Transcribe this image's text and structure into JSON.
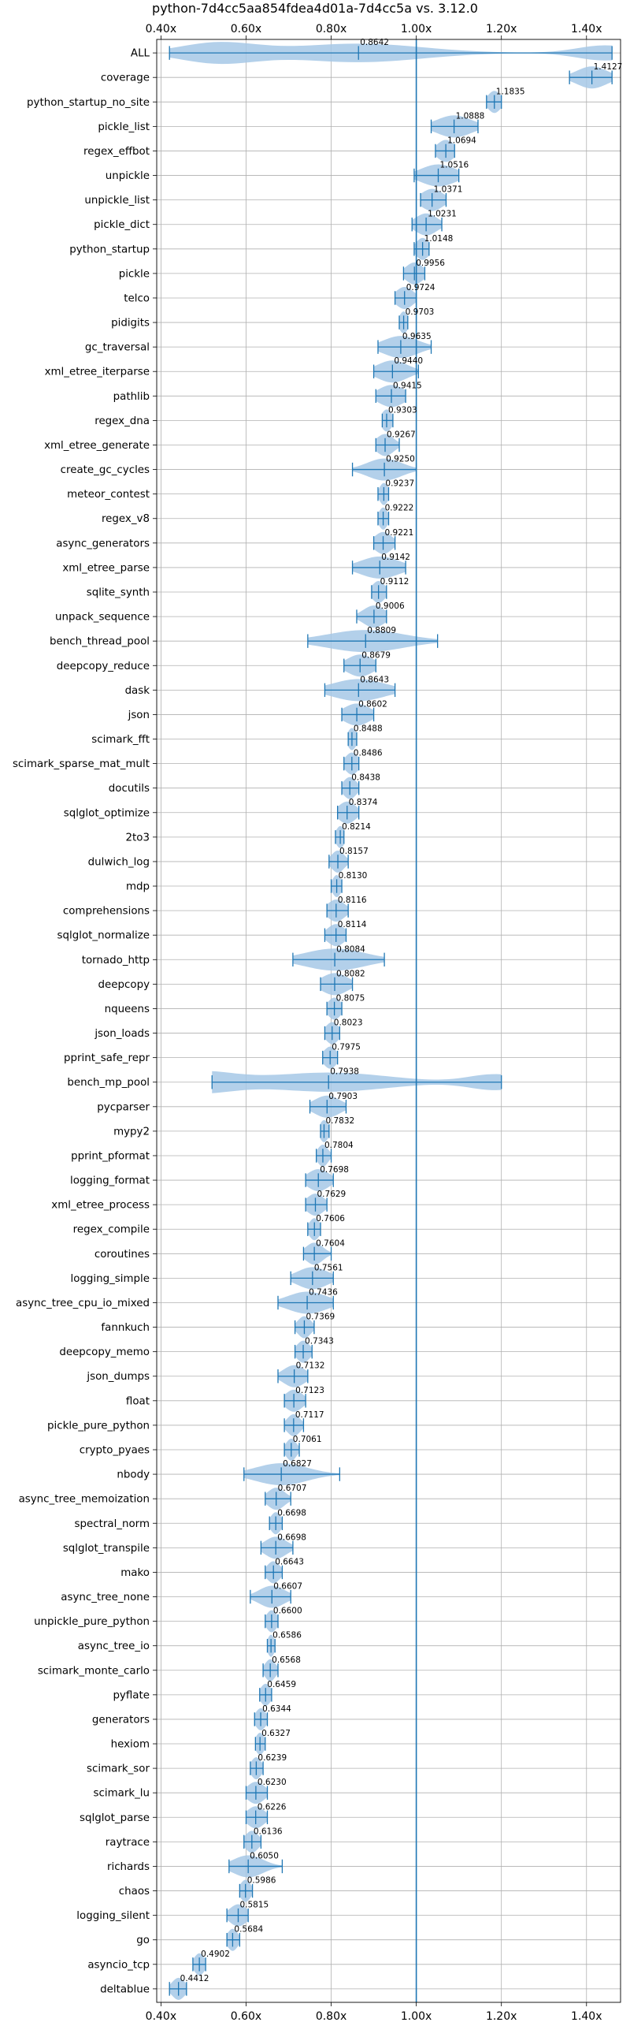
{
  "chart_data": {
    "type": "violin",
    "title": "python-7d4cc5aa854fdea4d01a-7d4cc5a vs. 3.12.0",
    "xlabel": "",
    "ylabel": "",
    "xlim": [
      0.39,
      1.48
    ],
    "x_ticks": [
      0.4,
      0.6,
      0.8,
      1.0,
      1.2,
      1.4
    ],
    "x_tick_labels": [
      "0.40x",
      "0.60x",
      "0.80x",
      "1.00x",
      "1.20x",
      "1.40x"
    ],
    "reference_line": 1.0,
    "grid": true,
    "color": "#1f77b4",
    "fill_color": "#a6c8e6",
    "benchmarks": [
      {
        "name": "ALL",
        "label": "0.8642",
        "median": 0.8642,
        "min": 0.42,
        "max": 1.46,
        "spread": 0.15,
        "multimodal": true
      },
      {
        "name": "coverage",
        "label": "1.4127",
        "median": 1.4127,
        "min": 1.36,
        "max": 1.46,
        "spread": 0.035
      },
      {
        "name": "python_startup_no_site",
        "label": "1.1835",
        "median": 1.1835,
        "min": 1.165,
        "max": 1.2,
        "spread": 0.015
      },
      {
        "name": "pickle_list",
        "label": "1.0888",
        "median": 1.0888,
        "min": 1.035,
        "max": 1.145,
        "spread": 0.04
      },
      {
        "name": "regex_effbot",
        "label": "1.0694",
        "median": 1.0694,
        "min": 1.045,
        "max": 1.09,
        "spread": 0.02
      },
      {
        "name": "unpickle",
        "label": "1.0516",
        "median": 1.0516,
        "min": 0.995,
        "max": 1.1,
        "spread": 0.04
      },
      {
        "name": "unpickle_list",
        "label": "1.0371",
        "median": 1.0371,
        "min": 1.01,
        "max": 1.07,
        "spread": 0.025
      },
      {
        "name": "pickle_dict",
        "label": "1.0231",
        "median": 1.0231,
        "min": 0.99,
        "max": 1.06,
        "spread": 0.025
      },
      {
        "name": "python_startup",
        "label": "1.0148",
        "median": 1.0148,
        "min": 0.995,
        "max": 1.03,
        "spread": 0.015
      },
      {
        "name": "pickle",
        "label": "0.9956",
        "median": 0.9956,
        "min": 0.97,
        "max": 1.02,
        "spread": 0.02
      },
      {
        "name": "telco",
        "label": "0.9724",
        "median": 0.9724,
        "min": 0.95,
        "max": 1.0,
        "spread": 0.02
      },
      {
        "name": "pidigits",
        "label": "0.9703",
        "median": 0.9703,
        "min": 0.96,
        "max": 0.98,
        "spread": 0.01
      },
      {
        "name": "gc_traversal",
        "label": "0.9635",
        "median": 0.9635,
        "min": 0.91,
        "max": 1.035,
        "spread": 0.04
      },
      {
        "name": "xml_etree_iterparse",
        "label": "0.9440",
        "median": 0.944,
        "min": 0.9,
        "max": 1.005,
        "spread": 0.035
      },
      {
        "name": "pathlib",
        "label": "0.9415",
        "median": 0.9415,
        "min": 0.905,
        "max": 0.975,
        "spread": 0.03
      },
      {
        "name": "regex_dna",
        "label": "0.9303",
        "median": 0.9303,
        "min": 0.92,
        "max": 0.945,
        "spread": 0.012
      },
      {
        "name": "xml_etree_generate",
        "label": "0.9267",
        "median": 0.9267,
        "min": 0.905,
        "max": 0.96,
        "spread": 0.02
      },
      {
        "name": "create_gc_cycles",
        "label": "0.9250",
        "median": 0.925,
        "min": 0.85,
        "max": 1.0,
        "spread": 0.04
      },
      {
        "name": "meteor_contest",
        "label": "0.9237",
        "median": 0.9237,
        "min": 0.91,
        "max": 0.935,
        "spread": 0.01
      },
      {
        "name": "regex_v8",
        "label": "0.9222",
        "median": 0.9222,
        "min": 0.91,
        "max": 0.935,
        "spread": 0.01
      },
      {
        "name": "async_generators",
        "label": "0.9221",
        "median": 0.9221,
        "min": 0.9,
        "max": 0.95,
        "spread": 0.02
      },
      {
        "name": "xml_etree_parse",
        "label": "0.9142",
        "median": 0.9142,
        "min": 0.85,
        "max": 0.975,
        "spread": 0.045
      },
      {
        "name": "sqlite_synth",
        "label": "0.9112",
        "median": 0.9112,
        "min": 0.895,
        "max": 0.93,
        "spread": 0.015
      },
      {
        "name": "unpack_sequence",
        "label": "0.9006",
        "median": 0.9006,
        "min": 0.86,
        "max": 0.93,
        "spread": 0.025
      },
      {
        "name": "bench_thread_pool",
        "label": "0.8809",
        "median": 0.8809,
        "min": 0.745,
        "max": 1.05,
        "spread": 0.09
      },
      {
        "name": "deepcopy_reduce",
        "label": "0.8679",
        "median": 0.8679,
        "min": 0.83,
        "max": 0.905,
        "spread": 0.03
      },
      {
        "name": "dask",
        "label": "0.8643",
        "median": 0.8643,
        "min": 0.785,
        "max": 0.95,
        "spread": 0.06
      },
      {
        "name": "json",
        "label": "0.8602",
        "median": 0.8602,
        "min": 0.825,
        "max": 0.9,
        "spread": 0.03
      },
      {
        "name": "scimark_fft",
        "label": "0.8488",
        "median": 0.8488,
        "min": 0.84,
        "max": 0.86,
        "spread": 0.01
      },
      {
        "name": "scimark_sparse_mat_mult",
        "label": "0.8486",
        "median": 0.8486,
        "min": 0.83,
        "max": 0.865,
        "spread": 0.015
      },
      {
        "name": "docutils",
        "label": "0.8438",
        "median": 0.8438,
        "min": 0.825,
        "max": 0.865,
        "spread": 0.015
      },
      {
        "name": "sqlglot_optimize",
        "label": "0.8374",
        "median": 0.8374,
        "min": 0.815,
        "max": 0.865,
        "spread": 0.02
      },
      {
        "name": "2to3",
        "label": "0.8214",
        "median": 0.8214,
        "min": 0.81,
        "max": 0.83,
        "spread": 0.01
      },
      {
        "name": "dulwich_log",
        "label": "0.8157",
        "median": 0.8157,
        "min": 0.795,
        "max": 0.84,
        "spread": 0.015
      },
      {
        "name": "mdp",
        "label": "0.8130",
        "median": 0.813,
        "min": 0.8,
        "max": 0.825,
        "spread": 0.01
      },
      {
        "name": "comprehensions",
        "label": "0.8116",
        "median": 0.8116,
        "min": 0.79,
        "max": 0.84,
        "spread": 0.02
      },
      {
        "name": "sqlglot_normalize",
        "label": "0.8114",
        "median": 0.8114,
        "min": 0.785,
        "max": 0.835,
        "spread": 0.02
      },
      {
        "name": "tornado_http",
        "label": "0.8084",
        "median": 0.8084,
        "min": 0.71,
        "max": 0.925,
        "spread": 0.07
      },
      {
        "name": "deepcopy",
        "label": "0.8082",
        "median": 0.8082,
        "min": 0.775,
        "max": 0.85,
        "spread": 0.03
      },
      {
        "name": "nqueens",
        "label": "0.8075",
        "median": 0.8075,
        "min": 0.79,
        "max": 0.825,
        "spread": 0.015
      },
      {
        "name": "json_loads",
        "label": "0.8023",
        "median": 0.8023,
        "min": 0.785,
        "max": 0.82,
        "spread": 0.015
      },
      {
        "name": "pprint_safe_repr",
        "label": "0.7975",
        "median": 0.7975,
        "min": 0.78,
        "max": 0.815,
        "spread": 0.015
      },
      {
        "name": "bench_mp_pool",
        "label": "0.7938",
        "median": 0.7938,
        "min": 0.52,
        "max": 1.2,
        "spread": 0.14,
        "multimodal": true
      },
      {
        "name": "pycparser",
        "label": "0.7903",
        "median": 0.7903,
        "min": 0.75,
        "max": 0.835,
        "spread": 0.03
      },
      {
        "name": "mypy2",
        "label": "0.7832",
        "median": 0.7832,
        "min": 0.775,
        "max": 0.795,
        "spread": 0.01
      },
      {
        "name": "pprint_pformat",
        "label": "0.7804",
        "median": 0.7804,
        "min": 0.765,
        "max": 0.8,
        "spread": 0.012
      },
      {
        "name": "logging_format",
        "label": "0.7698",
        "median": 0.7698,
        "min": 0.74,
        "max": 0.805,
        "spread": 0.025
      },
      {
        "name": "xml_etree_process",
        "label": "0.7629",
        "median": 0.7629,
        "min": 0.74,
        "max": 0.79,
        "spread": 0.02
      },
      {
        "name": "regex_compile",
        "label": "0.7606",
        "median": 0.7606,
        "min": 0.745,
        "max": 0.775,
        "spread": 0.012
      },
      {
        "name": "coroutines",
        "label": "0.7604",
        "median": 0.7604,
        "min": 0.735,
        "max": 0.8,
        "spread": 0.02
      },
      {
        "name": "logging_simple",
        "label": "0.7561",
        "median": 0.7561,
        "min": 0.705,
        "max": 0.805,
        "spread": 0.035
      },
      {
        "name": "async_tree_cpu_io_mixed",
        "label": "0.7436",
        "median": 0.7436,
        "min": 0.675,
        "max": 0.805,
        "spread": 0.045
      },
      {
        "name": "fannkuch",
        "label": "0.7369",
        "median": 0.7369,
        "min": 0.715,
        "max": 0.76,
        "spread": 0.015
      },
      {
        "name": "deepcopy_memo",
        "label": "0.7343",
        "median": 0.7343,
        "min": 0.715,
        "max": 0.755,
        "spread": 0.015
      },
      {
        "name": "json_dumps",
        "label": "0.7132",
        "median": 0.7132,
        "min": 0.675,
        "max": 0.745,
        "spread": 0.025
      },
      {
        "name": "float",
        "label": "0.7123",
        "median": 0.7123,
        "min": 0.69,
        "max": 0.74,
        "spread": 0.02
      },
      {
        "name": "pickle_pure_python",
        "label": "0.7117",
        "median": 0.7117,
        "min": 0.69,
        "max": 0.735,
        "spread": 0.015
      },
      {
        "name": "crypto_pyaes",
        "label": "0.7061",
        "median": 0.7061,
        "min": 0.69,
        "max": 0.725,
        "spread": 0.012
      },
      {
        "name": "nbody",
        "label": "0.6827",
        "median": 0.6827,
        "min": 0.595,
        "max": 0.82,
        "spread": 0.06
      },
      {
        "name": "async_tree_memoization",
        "label": "0.6707",
        "median": 0.6707,
        "min": 0.645,
        "max": 0.705,
        "spread": 0.02
      },
      {
        "name": "spectral_norm",
        "label": "0.6698",
        "median": 0.6698,
        "min": 0.655,
        "max": 0.685,
        "spread": 0.012
      },
      {
        "name": "sqlglot_transpile",
        "label": "0.6698",
        "median": 0.6698,
        "min": 0.635,
        "max": 0.71,
        "spread": 0.025
      },
      {
        "name": "mako",
        "label": "0.6643",
        "median": 0.6643,
        "min": 0.645,
        "max": 0.685,
        "spread": 0.015
      },
      {
        "name": "async_tree_none",
        "label": "0.6607",
        "median": 0.6607,
        "min": 0.61,
        "max": 0.705,
        "spread": 0.03
      },
      {
        "name": "unpickle_pure_python",
        "label": "0.6600",
        "median": 0.66,
        "min": 0.645,
        "max": 0.675,
        "spread": 0.012
      },
      {
        "name": "async_tree_io",
        "label": "0.6586",
        "median": 0.6586,
        "min": 0.65,
        "max": 0.668,
        "spread": 0.008
      },
      {
        "name": "scimark_monte_carlo",
        "label": "0.6568",
        "median": 0.6568,
        "min": 0.64,
        "max": 0.675,
        "spread": 0.012
      },
      {
        "name": "pyflate",
        "label": "0.6459",
        "median": 0.6459,
        "min": 0.632,
        "max": 0.66,
        "spread": 0.012
      },
      {
        "name": "generators",
        "label": "0.6344",
        "median": 0.6344,
        "min": 0.62,
        "max": 0.65,
        "spread": 0.012
      },
      {
        "name": "hexiom",
        "label": "0.6327",
        "median": 0.6327,
        "min": 0.622,
        "max": 0.645,
        "spread": 0.01
      },
      {
        "name": "scimark_sor",
        "label": "0.6239",
        "median": 0.6239,
        "min": 0.61,
        "max": 0.64,
        "spread": 0.012
      },
      {
        "name": "scimark_lu",
        "label": "0.6230",
        "median": 0.623,
        "min": 0.6,
        "max": 0.65,
        "spread": 0.02
      },
      {
        "name": "sqlglot_parse",
        "label": "0.6226",
        "median": 0.6226,
        "min": 0.6,
        "max": 0.65,
        "spread": 0.02
      },
      {
        "name": "raytrace",
        "label": "0.6136",
        "median": 0.6136,
        "min": 0.595,
        "max": 0.635,
        "spread": 0.015
      },
      {
        "name": "richards",
        "label": "0.6050",
        "median": 0.605,
        "min": 0.56,
        "max": 0.685,
        "spread": 0.035
      },
      {
        "name": "chaos",
        "label": "0.5986",
        "median": 0.5986,
        "min": 0.585,
        "max": 0.615,
        "spread": 0.012
      },
      {
        "name": "logging_silent",
        "label": "0.5815",
        "median": 0.5815,
        "min": 0.555,
        "max": 0.605,
        "spread": 0.02
      },
      {
        "name": "go",
        "label": "0.5684",
        "median": 0.5684,
        "min": 0.555,
        "max": 0.585,
        "spread": 0.012
      },
      {
        "name": "asyncio_tcp",
        "label": "0.4902",
        "median": 0.4902,
        "min": 0.475,
        "max": 0.505,
        "spread": 0.012
      },
      {
        "name": "deltablue",
        "label": "0.4412",
        "median": 0.4412,
        "min": 0.42,
        "max": 0.46,
        "spread": 0.015
      }
    ]
  }
}
